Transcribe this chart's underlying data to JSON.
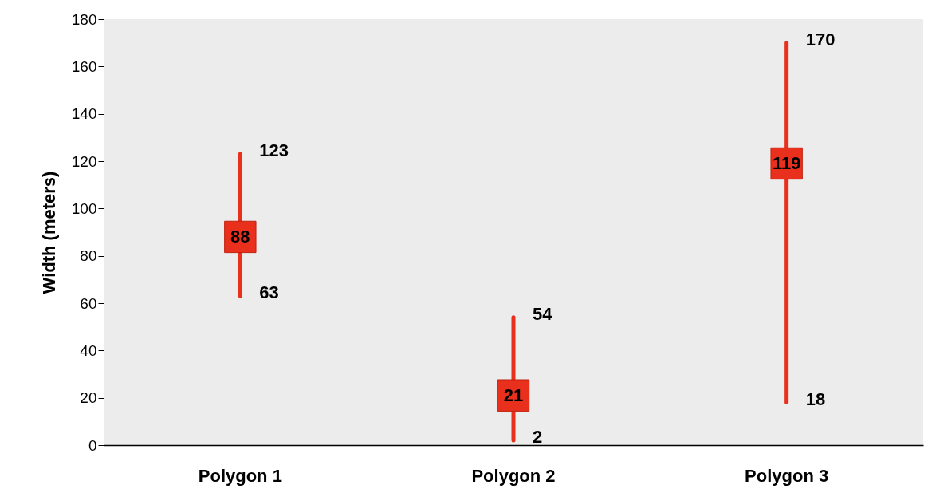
{
  "chart_data": {
    "type": "scatter",
    "categories": [
      "Polygon 1",
      "Polygon 2",
      "Polygon 3"
    ],
    "values": [
      88,
      21,
      119
    ],
    "errors": [
      [
        63,
        123
      ],
      [
        2,
        54
      ],
      [
        18,
        170
      ]
    ],
    "annotations": [
      {
        "text": "123",
        "x": "Polygon 1",
        "y": 123
      },
      {
        "text": "63",
        "x": "Polygon 1",
        "y": 63
      },
      {
        "text": "54",
        "x": "Polygon 2",
        "y": 54
      },
      {
        "text": "2",
        "x": "Polygon 2",
        "y": 2
      },
      {
        "text": "170",
        "x": "Polygon 3",
        "y": 170
      },
      {
        "text": "18",
        "x": "Polygon 3",
        "y": 18
      }
    ],
    "color": "#e8301c",
    "marker": "square",
    "data_labels": true,
    "ylabel": "Width (meters)",
    "ylim": [
      0,
      180
    ],
    "yticks": [
      0,
      20,
      40,
      60,
      80,
      100,
      120,
      140,
      160,
      180
    ]
  }
}
